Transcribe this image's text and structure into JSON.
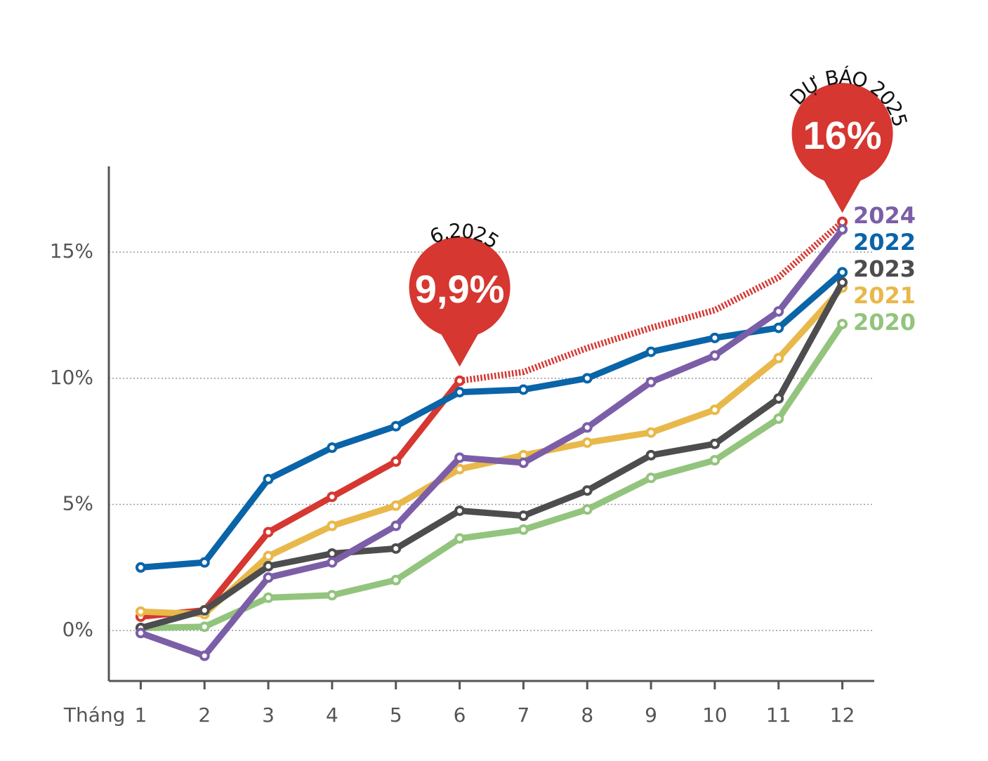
{
  "chart_data": {
    "type": "line",
    "x_label": "Tháng",
    "x": [
      1,
      2,
      3,
      4,
      5,
      6,
      7,
      8,
      9,
      10,
      11,
      12
    ],
    "xlim": [
      0.5,
      12.5
    ],
    "xticks": [
      1,
      2,
      3,
      4,
      5,
      6,
      7,
      8,
      9,
      10,
      11,
      12
    ],
    "ylim": [
      -2,
      18.4
    ],
    "yticks": [
      {
        "value": 0,
        "label": "0%"
      },
      {
        "value": 5,
        "label": "5%"
      },
      {
        "value": 10,
        "label": "10%"
      },
      {
        "value": 15,
        "label": "15%"
      }
    ],
    "grid": true,
    "series": [
      {
        "name": "2024",
        "color": "#7b5ea7",
        "values": [
          -0.1,
          -1.0,
          2.1,
          2.7,
          4.15,
          6.85,
          6.65,
          8.05,
          9.85,
          10.9,
          12.65,
          15.9
        ]
      },
      {
        "name": "2022",
        "color": "#0a64a8",
        "values": [
          2.5,
          2.7,
          6.0,
          7.25,
          8.1,
          9.45,
          9.55,
          10.0,
          11.05,
          11.6,
          12.0,
          14.2
        ]
      },
      {
        "name": "2023",
        "color": "#4d4d4f",
        "values": [
          0.1,
          0.8,
          2.55,
          3.05,
          3.25,
          4.75,
          4.55,
          5.55,
          6.95,
          7.4,
          9.2,
          13.8
        ]
      },
      {
        "name": "2021",
        "color": "#e8b84a",
        "values": [
          0.75,
          0.65,
          2.95,
          4.15,
          4.95,
          6.4,
          6.95,
          7.45,
          7.85,
          8.75,
          10.8,
          13.6
        ]
      },
      {
        "name": "2020",
        "color": "#93c47d",
        "values": [
          0.1,
          0.15,
          1.3,
          1.4,
          2.0,
          3.65,
          4.0,
          4.8,
          6.05,
          6.75,
          8.4,
          12.15
        ]
      },
      {
        "color": "#d63731",
        "values": [
          0.55,
          0.8,
          3.9,
          5.3,
          6.7,
          9.9,
          null,
          null,
          null,
          null,
          null,
          null
        ]
      },
      {
        "color": "#d63731",
        "dashed": true,
        "values": [
          null,
          null,
          null,
          null,
          null,
          9.9,
          10.25,
          11.2,
          12.0,
          12.7,
          14.0,
          16.2
        ]
      }
    ],
    "annotations": [
      {
        "label": "6.2025",
        "x": 6,
        "value": 9.9,
        "value_label": "9,9%"
      },
      {
        "label": "DỰ BÁO 2025",
        "x": 12,
        "value": 16,
        "value_label": "16%"
      }
    ]
  }
}
